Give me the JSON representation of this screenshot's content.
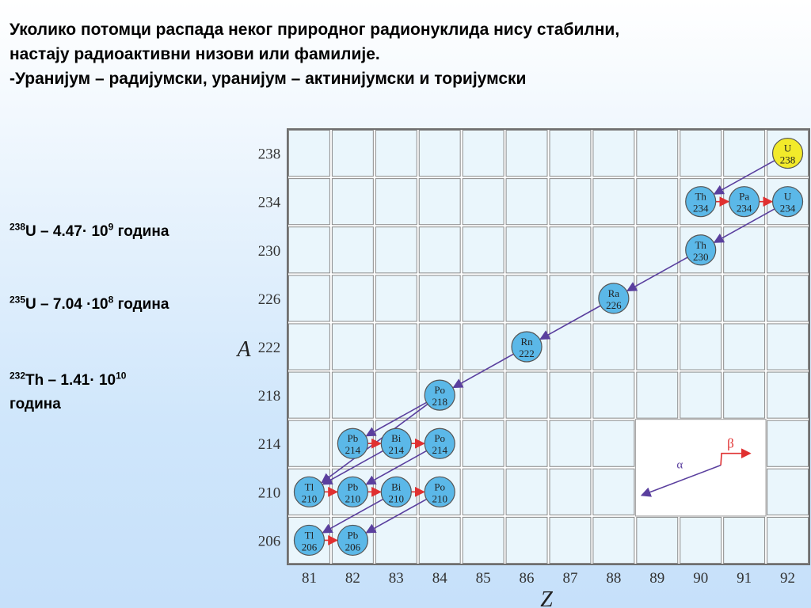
{
  "header": {
    "line1": "Уколико потомци распада неког природног радионуклида нису стабилни,",
    "line2": "настају радиоактивни низови или фамилије.",
    "line3": "-Уранијум – радијумски, уранијум – актинијумски и торијумски"
  },
  "half_lives": [
    {
      "mass": "238",
      "symbol": "U",
      "value": "– 4.47· 10",
      "exp": "9",
      "unit": "година"
    },
    {
      "mass": "235",
      "symbol": "U",
      "value": "– 7.04 ·10",
      "exp": "8",
      "unit": "година"
    },
    {
      "mass": "232",
      "symbol": "Th",
      "value": "– 1.41· 10",
      "exp": "10",
      "unit": "година"
    }
  ],
  "diagram": {
    "y_axis_label": "A",
    "x_axis_label": "Z",
    "y_ticks": [
      "238",
      "234",
      "230",
      "226",
      "222",
      "218",
      "214",
      "210",
      "206"
    ],
    "x_ticks": [
      "81",
      "82",
      "83",
      "84",
      "85",
      "86",
      "87",
      "88",
      "89",
      "90",
      "91",
      "92"
    ],
    "colors": {
      "nuclide": "#5bb8e8",
      "stable_highlight": "#f2ea2a",
      "alpha_arrow": "#5a3f9e",
      "beta_arrow": "#e03030",
      "grid": "#6f6f6f"
    },
    "nuclides": [
      {
        "sym": "U",
        "A": 238,
        "Z": 92,
        "highlight": true
      },
      {
        "sym": "Th",
        "A": 234,
        "Z": 90
      },
      {
        "sym": "Pa",
        "A": 234,
        "Z": 91
      },
      {
        "sym": "U",
        "A": 234,
        "Z": 92
      },
      {
        "sym": "Th",
        "A": 230,
        "Z": 90
      },
      {
        "sym": "Ra",
        "A": 226,
        "Z": 88
      },
      {
        "sym": "Rn",
        "A": 222,
        "Z": 86
      },
      {
        "sym": "Po",
        "A": 218,
        "Z": 84
      },
      {
        "sym": "Pb",
        "A": 214,
        "Z": 82
      },
      {
        "sym": "Bi",
        "A": 214,
        "Z": 83
      },
      {
        "sym": "Po",
        "A": 214,
        "Z": 84
      },
      {
        "sym": "Tl",
        "A": 210,
        "Z": 81
      },
      {
        "sym": "Pb",
        "A": 210,
        "Z": 82
      },
      {
        "sym": "Bi",
        "A": 210,
        "Z": 83
      },
      {
        "sym": "Po",
        "A": 210,
        "Z": 84
      },
      {
        "sym": "Tl",
        "A": 206,
        "Z": 81
      },
      {
        "sym": "Pb",
        "A": 206,
        "Z": 82
      }
    ],
    "alpha_decays": [
      [
        92,
        238,
        90,
        234
      ],
      [
        92,
        234,
        90,
        230
      ],
      [
        90,
        230,
        88,
        226
      ],
      [
        88,
        226,
        86,
        222
      ],
      [
        86,
        222,
        84,
        218
      ],
      [
        84,
        218,
        82,
        214
      ],
      [
        84,
        218,
        81,
        210
      ],
      [
        84,
        214,
        82,
        210
      ],
      [
        83,
        214,
        81,
        210
      ],
      [
        84,
        210,
        82,
        206
      ],
      [
        83,
        210,
        81,
        206
      ]
    ],
    "beta_decays": [
      [
        90,
        234,
        91,
        234
      ],
      [
        91,
        234,
        92,
        234
      ],
      [
        82,
        214,
        83,
        214
      ],
      [
        83,
        214,
        84,
        214
      ],
      [
        81,
        210,
        82,
        210
      ],
      [
        82,
        210,
        83,
        210
      ],
      [
        83,
        210,
        84,
        210
      ],
      [
        81,
        206,
        82,
        206
      ]
    ],
    "legend": {
      "alpha": "α",
      "beta": "β"
    }
  }
}
